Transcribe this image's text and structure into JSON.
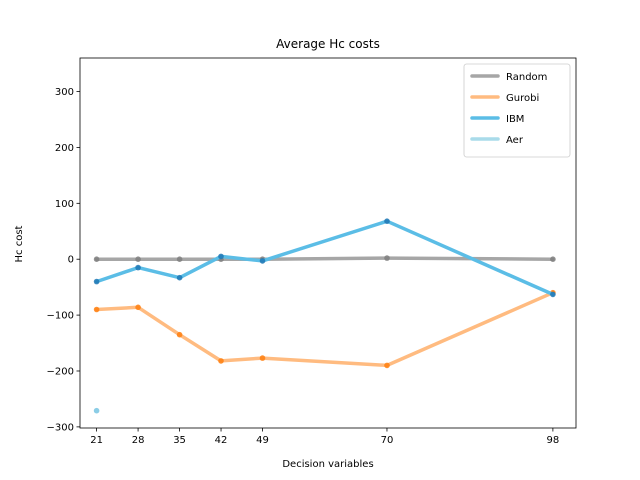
{
  "chart_data": {
    "type": "line",
    "title": "Average Hc costs",
    "xlabel": "Decision variables",
    "ylabel": "Hc cost",
    "x": [
      21,
      28,
      35,
      42,
      49,
      70,
      98
    ],
    "x_ticks": [
      21,
      28,
      35,
      42,
      49,
      70,
      98
    ],
    "y_ticks": [
      -300,
      -200,
      -100,
      0,
      100,
      200,
      300
    ],
    "y_tick_labels": [
      "−300",
      "−200",
      "−100",
      "0",
      "100",
      "200",
      "300"
    ],
    "xlim": [
      18.2,
      101.9
    ],
    "ylim": [
      -302,
      360
    ],
    "grid": false,
    "legend_position": "top-right",
    "series": [
      {
        "name": "Random",
        "color": "#a6a6a6",
        "marker_color": "#7f7f7f",
        "x": [
          21,
          28,
          35,
          42,
          49,
          70,
          98
        ],
        "values": [
          0,
          0,
          0,
          0,
          0,
          2,
          0
        ]
      },
      {
        "name": "Gurobi",
        "color": "#ffbb80",
        "marker_color": "#ff7f0e",
        "x": [
          21,
          28,
          35,
          42,
          49,
          70,
          98
        ],
        "values": [
          -90,
          -86,
          -135,
          -182,
          -177,
          -190,
          -60
        ]
      },
      {
        "name": "IBM",
        "color": "#5bbde6",
        "marker_color": "#1f77b4",
        "x": [
          21,
          28,
          35,
          42,
          49,
          70,
          98
        ],
        "values": [
          -40,
          -15,
          -33,
          5,
          -3,
          68,
          -63
        ]
      },
      {
        "name": "Aer",
        "color": "#a9dbea",
        "marker_color": "#7ec8e3",
        "x": [
          21
        ],
        "values": [
          -271
        ]
      }
    ]
  }
}
